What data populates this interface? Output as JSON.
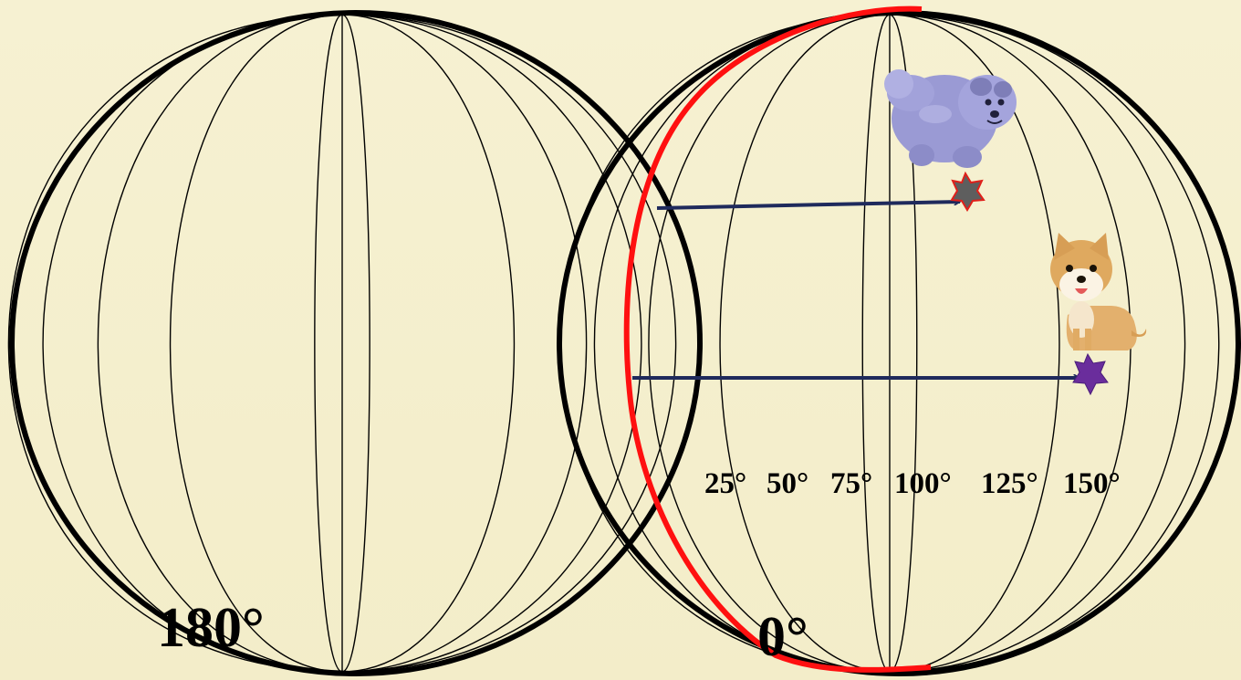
{
  "labels": {
    "left_globe": "180°",
    "right_globe": "0°",
    "longitudes": [
      "25°",
      "50°",
      "75°",
      "100°",
      "125°",
      "150°"
    ]
  },
  "colors": {
    "background": "#f5f0cf",
    "outline": "#000000",
    "highlight_meridian": "#ff0000",
    "arrow": "#1f2a5c",
    "upper_marker": "#5e5e5e",
    "upper_marker_outline": "#e0201a",
    "lower_marker": "#6a2d9c"
  },
  "icons": {
    "upper_animal": "gray-fluffy-dog-icon",
    "lower_animal": "shiba-puppy-icon"
  }
}
